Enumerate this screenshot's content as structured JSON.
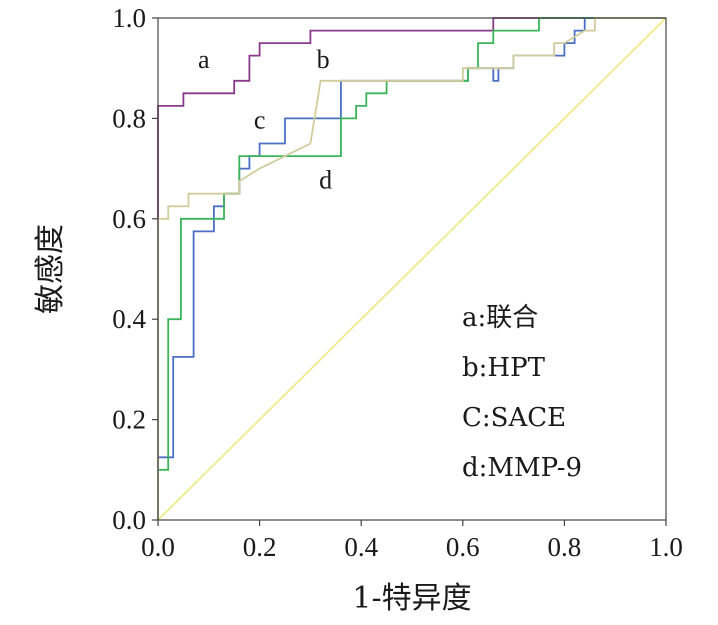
{
  "chart_data": {
    "type": "line",
    "xlabel": "1-特异度",
    "ylabel": "敏感度",
    "xlim": [
      0,
      1
    ],
    "ylim": [
      0,
      1
    ],
    "x_ticks": [
      "0.0",
      "0.2",
      "0.4",
      "0.6",
      "0.8",
      "1.0"
    ],
    "y_ticks": [
      "0.0",
      "0.2",
      "0.4",
      "0.6",
      "0.8",
      "1.0"
    ],
    "grid": false,
    "legend_position": "bottom-right",
    "legend": [
      "a:联合",
      "b:HPT",
      "C:SACE",
      "d:MMP-9"
    ],
    "series": [
      {
        "name": "a",
        "color": "#8b3a8b",
        "points": [
          [
            0,
            0
          ],
          [
            0,
            0.825
          ],
          [
            0.05,
            0.825
          ],
          [
            0.05,
            0.85
          ],
          [
            0.15,
            0.85
          ],
          [
            0.15,
            0.875
          ],
          [
            0.18,
            0.875
          ],
          [
            0.18,
            0.925
          ],
          [
            0.2,
            0.925
          ],
          [
            0.2,
            0.95
          ],
          [
            0.3,
            0.95
          ],
          [
            0.3,
            0.975
          ],
          [
            0.66,
            0.975
          ],
          [
            0.66,
            1.0
          ],
          [
            1.0,
            1.0
          ]
        ]
      },
      {
        "name": "b",
        "color": "#4a6fc4",
        "points": [
          [
            0,
            0
          ],
          [
            0,
            0.125
          ],
          [
            0.03,
            0.125
          ],
          [
            0.03,
            0.325
          ],
          [
            0.07,
            0.325
          ],
          [
            0.07,
            0.575
          ],
          [
            0.11,
            0.575
          ],
          [
            0.11,
            0.625
          ],
          [
            0.13,
            0.625
          ],
          [
            0.13,
            0.65
          ],
          [
            0.16,
            0.65
          ],
          [
            0.16,
            0.7
          ],
          [
            0.18,
            0.7
          ],
          [
            0.18,
            0.725
          ],
          [
            0.2,
            0.725
          ],
          [
            0.2,
            0.75
          ],
          [
            0.25,
            0.75
          ],
          [
            0.25,
            0.8
          ],
          [
            0.36,
            0.8
          ],
          [
            0.36,
            0.875
          ],
          [
            0.61,
            0.875
          ],
          [
            0.61,
            0.9
          ],
          [
            0.66,
            0.9
          ],
          [
            0.66,
            0.875
          ],
          [
            0.67,
            0.875
          ],
          [
            0.67,
            0.9
          ],
          [
            0.7,
            0.9
          ],
          [
            0.7,
            0.925
          ],
          [
            0.8,
            0.925
          ],
          [
            0.8,
            0.95
          ],
          [
            0.82,
            0.95
          ],
          [
            0.82,
            0.975
          ],
          [
            0.84,
            0.975
          ],
          [
            0.84,
            1.0
          ],
          [
            1.0,
            1.0
          ]
        ]
      },
      {
        "name": "C",
        "color": "#3cb55a",
        "points": [
          [
            0,
            0
          ],
          [
            0,
            0.1
          ],
          [
            0.02,
            0.1
          ],
          [
            0.02,
            0.4
          ],
          [
            0.045,
            0.4
          ],
          [
            0.045,
            0.6
          ],
          [
            0.13,
            0.6
          ],
          [
            0.13,
            0.65
          ],
          [
            0.16,
            0.65
          ],
          [
            0.16,
            0.725
          ],
          [
            0.36,
            0.725
          ],
          [
            0.36,
            0.8
          ],
          [
            0.39,
            0.8
          ],
          [
            0.39,
            0.825
          ],
          [
            0.41,
            0.825
          ],
          [
            0.41,
            0.85
          ],
          [
            0.45,
            0.85
          ],
          [
            0.45,
            0.875
          ],
          [
            0.61,
            0.875
          ],
          [
            0.61,
            0.9
          ],
          [
            0.63,
            0.9
          ],
          [
            0.63,
            0.95
          ],
          [
            0.66,
            0.95
          ],
          [
            0.66,
            0.975
          ],
          [
            0.75,
            0.975
          ],
          [
            0.75,
            1.0
          ],
          [
            1.0,
            1.0
          ]
        ]
      },
      {
        "name": "d",
        "color": "#d2cc9c",
        "points": [
          [
            0,
            0
          ],
          [
            0,
            0.6
          ],
          [
            0.02,
            0.6
          ],
          [
            0.02,
            0.625
          ],
          [
            0.06,
            0.625
          ],
          [
            0.06,
            0.65
          ],
          [
            0.16,
            0.65
          ],
          [
            0.16,
            0.675
          ],
          [
            0.2,
            0.7
          ],
          [
            0.25,
            0.725
          ],
          [
            0.3,
            0.75
          ],
          [
            0.32,
            0.875
          ],
          [
            0.6,
            0.875
          ],
          [
            0.6,
            0.9
          ],
          [
            0.62,
            0.9
          ],
          [
            0.7,
            0.9
          ],
          [
            0.7,
            0.925
          ],
          [
            0.78,
            0.925
          ],
          [
            0.78,
            0.95
          ],
          [
            0.8,
            0.95
          ],
          [
            0.84,
            0.975
          ],
          [
            0.86,
            0.975
          ],
          [
            0.86,
            1.0
          ],
          [
            1.0,
            1.0
          ]
        ]
      },
      {
        "name": "",
        "color": "#f2e98a",
        "points": [
          [
            0,
            0
          ],
          [
            1,
            1
          ]
        ]
      }
    ],
    "curve_labels": [
      {
        "text": "a",
        "x": 0.09,
        "y": 0.9
      },
      {
        "text": "b",
        "x": 0.325,
        "y": 0.9
      },
      {
        "text": "c",
        "x": 0.2,
        "y": 0.78
      },
      {
        "text": "d",
        "x": 0.33,
        "y": 0.66
      }
    ]
  }
}
